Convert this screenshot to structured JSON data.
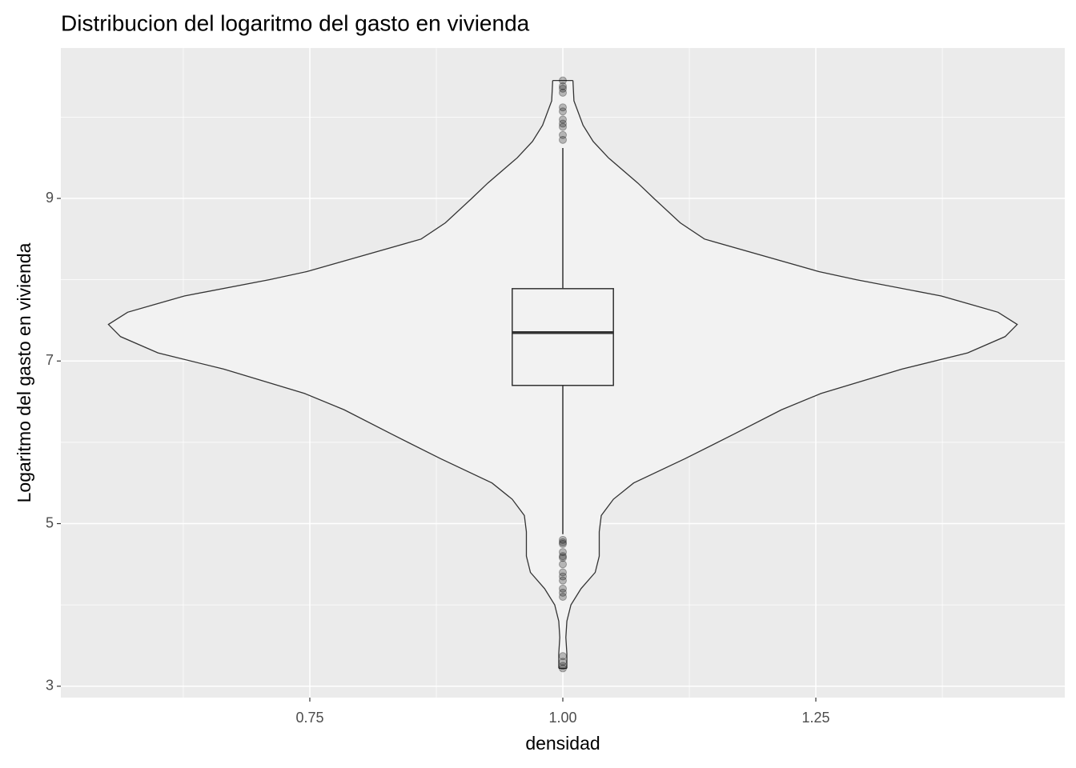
{
  "chart_data": {
    "type": "violin",
    "title": "Distribucion del logaritmo del gasto en vivienda",
    "x_label": "densidad",
    "y_label": "Logaritmo del gasto en vivienda",
    "xlim": [
      0.504,
      1.496
    ],
    "ylim": [
      2.86,
      10.85
    ],
    "xticks": [
      {
        "value": 0.75,
        "label": "0.75"
      },
      {
        "value": 1.0,
        "label": "1.00"
      },
      {
        "value": 1.25,
        "label": "1.25"
      }
    ],
    "yticks": [
      3,
      5,
      7,
      9
    ],
    "xminor": [
      0.625,
      0.875,
      1.125,
      1.375
    ],
    "yminor": [
      4,
      6,
      8,
      10
    ],
    "grid": true,
    "x": 1,
    "violin": {
      "y": [
        10.45,
        10.2,
        9.9,
        9.7,
        9.5,
        9.19,
        9.0,
        8.7,
        8.5,
        8.1,
        8.0,
        7.8,
        7.6,
        7.45,
        7.3,
        7.1,
        6.9,
        6.6,
        6.4,
        6.1,
        5.8,
        5.5,
        5.3,
        5.1,
        4.9,
        4.6,
        4.4,
        4.2,
        4.0,
        3.8,
        3.6,
        3.4,
        3.22
      ],
      "half_width": [
        0.01,
        0.011,
        0.02,
        0.03,
        0.045,
        0.074,
        0.09,
        0.116,
        0.14,
        0.253,
        0.29,
        0.374,
        0.43,
        0.449,
        0.437,
        0.4,
        0.335,
        0.255,
        0.216,
        0.169,
        0.121,
        0.07,
        0.05,
        0.038,
        0.036,
        0.036,
        0.032,
        0.018,
        0.008,
        0.004,
        0.003,
        0.004,
        0.004
      ]
    },
    "box": {
      "whisker_low": 4.87,
      "q1": 6.7,
      "median": 7.35,
      "q3": 7.89,
      "whisker_high": 9.62
    },
    "outliers": [
      10.45,
      10.38,
      10.35,
      10.3,
      10.12,
      10.07,
      9.97,
      9.92,
      9.88,
      9.78,
      9.72,
      4.8,
      4.77,
      4.75,
      4.65,
      4.6,
      4.58,
      4.5,
      4.4,
      4.35,
      4.3,
      4.2,
      4.15,
      4.1,
      3.37,
      3.3,
      3.25,
      3.22
    ],
    "panel_color": "#ebebeb",
    "violin_color": "#f2f2f2",
    "line_color": "#333333",
    "point_color": "#000000"
  }
}
